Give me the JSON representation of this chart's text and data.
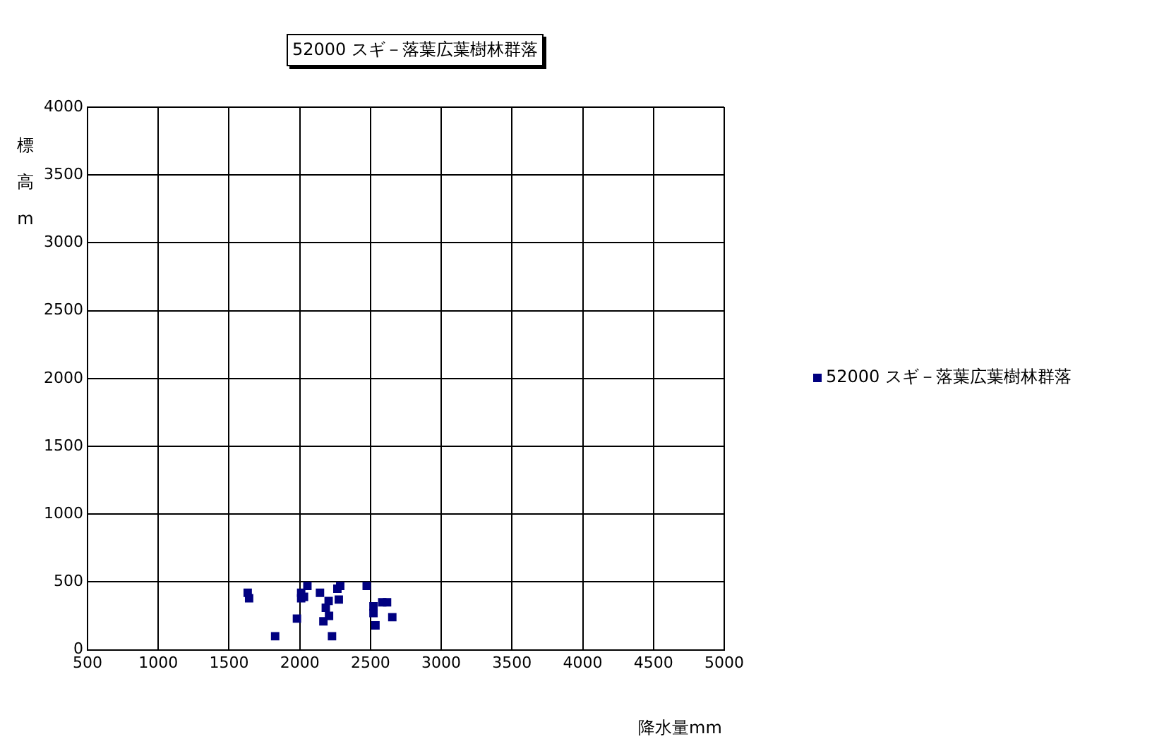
{
  "chart_data": {
    "type": "scatter",
    "title": "52000 スギ－落葉広葉樹林群落",
    "xlabel": "降水量mm",
    "ylabel": "標高m",
    "series": [
      {
        "name": "52000 スギ－落葉広葉樹林群落",
        "color": "#000080",
        "x": [
          1632,
          1642,
          1826,
          1980,
          2010,
          2010,
          2030,
          2054,
          2143,
          2167,
          2184,
          2204,
          2207,
          2228,
          2266,
          2286,
          2276,
          2473,
          2521,
          2521,
          2535,
          2583,
          2617,
          2654
        ],
        "values": [
          420,
          380,
          100,
          230,
          420,
          380,
          390,
          470,
          420,
          210,
          310,
          360,
          250,
          100,
          450,
          470,
          370,
          470,
          320,
          270,
          180,
          350,
          350,
          240
        ]
      }
    ],
    "xlim": [
      500,
      5000
    ],
    "xticks": [
      500,
      1000,
      1500,
      2000,
      2500,
      3000,
      3500,
      4000,
      4500,
      5000
    ],
    "ylim": [
      0,
      4000
    ],
    "yticks": [
      0,
      500,
      1000,
      1500,
      2000,
      2500,
      3000,
      3500,
      4000
    ],
    "grid": true,
    "legend": "right",
    "marker": "square"
  }
}
